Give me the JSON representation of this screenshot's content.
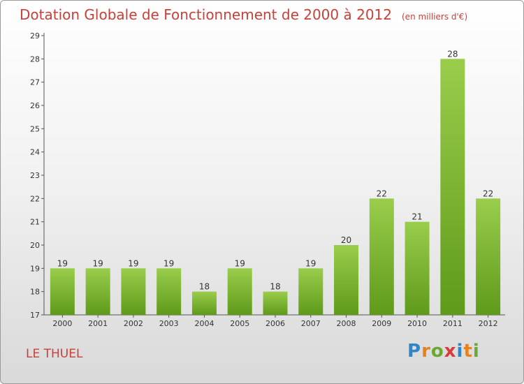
{
  "chart_data": {
    "type": "bar",
    "title": "Dotation Globale de Fonctionnement de 2000 à 2012",
    "subtitle": "(en milliers d'€)",
    "xlabel": "",
    "ylabel": "",
    "categories": [
      "2000",
      "2001",
      "2002",
      "2003",
      "2004",
      "2005",
      "2006",
      "2007",
      "2008",
      "2009",
      "2010",
      "2011",
      "2012"
    ],
    "values": [
      19,
      19,
      19,
      19,
      18,
      19,
      18,
      19,
      20,
      22,
      21,
      28,
      22
    ],
    "ylim": [
      17,
      29
    ],
    "yticks": [
      17,
      18,
      19,
      20,
      21,
      22,
      23,
      24,
      25,
      26,
      27,
      28,
      29
    ],
    "grid": false,
    "legend": "none",
    "bar_color_top": "#9acd4c",
    "bar_color_bottom": "#5f9a1a"
  },
  "commune": "LE THUEL",
  "logo": {
    "letters": [
      "P",
      "r",
      "o",
      "x",
      "i",
      "t",
      "i"
    ],
    "colors": [
      "#2f86c6",
      "#e8801c",
      "#6aa832",
      "#d93a3a",
      "#2f86c6",
      "#e8801c",
      "#6aa832"
    ]
  }
}
